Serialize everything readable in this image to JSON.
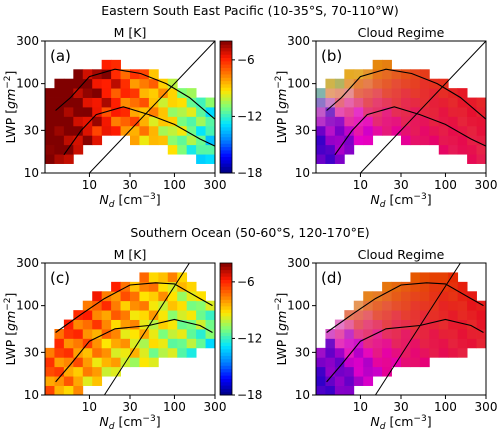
{
  "figure": {
    "section_titles": [
      "Eastern South East Pacific (10-35°S, 70-110°W)",
      "Southern Ocean (50-60°S, 120-170°E)"
    ]
  },
  "axes_text": {
    "ylabel_main": "LWP [",
    "ylabel_unit": "gm",
    "ylabel_exp": "−2",
    "ylabel_close": "]",
    "xlabel_main": "N",
    "xlabel_sub": "d",
    "xlabel_unit": " [cm",
    "xlabel_exp": "−3",
    "xlabel_close": "]"
  },
  "colors": {
    "colormap": [
      "#00007f",
      "#0000ff",
      "#0080ff",
      "#00e5ff",
      "#7dff7a",
      "#ffe600",
      "#ff7b00",
      "#ff1a00",
      "#800000"
    ],
    "cloud_regime_mix": [
      "#ff0000",
      "#00c000",
      "#3c3ccc"
    ],
    "contour": "#000000"
  },
  "chart_data": [
    {
      "type": "heatmap",
      "panel_label": "(a)",
      "title": "M [K]",
      "xscale": "log",
      "yscale": "log",
      "xlim": [
        3,
        300
      ],
      "ylim": [
        10,
        300
      ],
      "xticks": [
        10,
        30,
        100,
        300
      ],
      "yticks": [
        10,
        30,
        100,
        300
      ],
      "colorbar": {
        "min": -18,
        "max": -4,
        "ticks": [
          -6,
          -12,
          -18
        ]
      },
      "reference_line": {
        "points": [
          [
            10,
            10
          ],
          [
            300,
            300
          ]
        ]
      },
      "field": {
        "kind": "M",
        "base": -7,
        "nd_slope": -5,
        "lwp_slope": 1.5,
        "nd_center": 30,
        "lwp_center": 60
      },
      "mask": {
        "upper_lwp": [
          [
            3,
            80
          ],
          [
            5,
            110
          ],
          [
            10,
            160
          ],
          [
            20,
            170
          ],
          [
            40,
            150
          ],
          [
            70,
            120
          ],
          [
            150,
            90
          ],
          [
            300,
            60
          ]
        ],
        "lower_lwp": [
          [
            3,
            12
          ],
          [
            5,
            12
          ],
          [
            8,
            18
          ],
          [
            15,
            25
          ],
          [
            50,
            22
          ],
          [
            150,
            15
          ],
          [
            300,
            12
          ]
        ]
      },
      "contours": [
        [
          [
            4,
            50
          ],
          [
            6,
            70
          ],
          [
            10,
            120
          ],
          [
            20,
            145
          ],
          [
            40,
            130
          ],
          [
            80,
            100
          ],
          [
            150,
            70
          ],
          [
            300,
            40
          ]
        ],
        [
          [
            5,
            16
          ],
          [
            8,
            30
          ],
          [
            12,
            45
          ],
          [
            25,
            55
          ],
          [
            50,
            45
          ],
          [
            100,
            35
          ],
          [
            200,
            24
          ],
          [
            300,
            20
          ]
        ]
      ]
    },
    {
      "type": "heatmap",
      "panel_label": "(b)",
      "title": "Cloud Regime",
      "xscale": "log",
      "yscale": "log",
      "xlim": [
        3,
        300
      ],
      "ylim": [
        10,
        300
      ],
      "xticks": [
        10,
        30,
        100,
        300
      ],
      "yticks": [
        10,
        30,
        100,
        300
      ],
      "reference_line": {
        "points": [
          [
            10,
            10
          ],
          [
            300,
            300
          ]
        ]
      },
      "field": {
        "kind": "regime"
      },
      "mask": {
        "upper_lwp": [
          [
            3,
            80
          ],
          [
            5,
            110
          ],
          [
            10,
            160
          ],
          [
            20,
            170
          ],
          [
            40,
            150
          ],
          [
            70,
            120
          ],
          [
            150,
            90
          ],
          [
            300,
            60
          ]
        ],
        "lower_lwp": [
          [
            3,
            12
          ],
          [
            5,
            12
          ],
          [
            8,
            18
          ],
          [
            15,
            25
          ],
          [
            50,
            22
          ],
          [
            150,
            15
          ],
          [
            300,
            12
          ]
        ]
      },
      "contours": [
        [
          [
            4,
            50
          ],
          [
            6,
            70
          ],
          [
            10,
            120
          ],
          [
            20,
            145
          ],
          [
            40,
            130
          ],
          [
            80,
            100
          ],
          [
            150,
            70
          ],
          [
            300,
            40
          ]
        ],
        [
          [
            5,
            16
          ],
          [
            8,
            30
          ],
          [
            12,
            45
          ],
          [
            25,
            55
          ],
          [
            50,
            45
          ],
          [
            100,
            35
          ],
          [
            200,
            24
          ],
          [
            300,
            20
          ]
        ]
      ]
    },
    {
      "type": "heatmap",
      "panel_label": "(c)",
      "title": "M [K]",
      "xscale": "log",
      "yscale": "log",
      "xlim": [
        3,
        300
      ],
      "ylim": [
        10,
        300
      ],
      "xticks": [
        10,
        30,
        100,
        300
      ],
      "yticks": [
        10,
        30,
        100,
        300
      ],
      "colorbar": {
        "min": -18,
        "max": -4,
        "ticks": [
          -6,
          -12,
          -18
        ]
      },
      "reference_line": {
        "points": [
          [
            15,
            10
          ],
          [
            150,
            300
          ]
        ]
      },
      "field": {
        "kind": "M",
        "base": -8,
        "nd_slope": -3,
        "lwp_slope": 2.5,
        "nd_center": 20,
        "lwp_center": 60
      },
      "mask": {
        "upper_lwp": [
          [
            3,
            30
          ],
          [
            5,
            60
          ],
          [
            10,
            120
          ],
          [
            20,
            170
          ],
          [
            50,
            220
          ],
          [
            100,
            260
          ],
          [
            200,
            150
          ],
          [
            300,
            100
          ]
        ],
        "lower_lwp": [
          [
            3,
            10
          ],
          [
            5,
            10
          ],
          [
            10,
            12
          ],
          [
            20,
            18
          ],
          [
            50,
            22
          ],
          [
            100,
            25
          ],
          [
            200,
            30
          ],
          [
            300,
            30
          ]
        ]
      },
      "contours": [
        [
          [
            4,
            50
          ],
          [
            8,
            80
          ],
          [
            15,
            120
          ],
          [
            30,
            170
          ],
          [
            60,
            180
          ],
          [
            100,
            175
          ],
          [
            200,
            120
          ],
          [
            280,
            100
          ]
        ],
        [
          [
            4,
            14
          ],
          [
            6,
            22
          ],
          [
            10,
            40
          ],
          [
            20,
            55
          ],
          [
            50,
            60
          ],
          [
            100,
            70
          ],
          [
            200,
            60
          ],
          [
            280,
            50
          ]
        ]
      ]
    },
    {
      "type": "heatmap",
      "panel_label": "(d)",
      "title": "Cloud Regime",
      "xscale": "log",
      "yscale": "log",
      "xlim": [
        3,
        300
      ],
      "ylim": [
        10,
        300
      ],
      "xticks": [
        10,
        30,
        100,
        300
      ],
      "yticks": [
        10,
        30,
        100,
        300
      ],
      "reference_line": {
        "points": [
          [
            15,
            10
          ],
          [
            150,
            300
          ]
        ]
      },
      "field": {
        "kind": "regime"
      },
      "mask": {
        "upper_lwp": [
          [
            3,
            30
          ],
          [
            5,
            60
          ],
          [
            10,
            120
          ],
          [
            20,
            170
          ],
          [
            50,
            220
          ],
          [
            100,
            260
          ],
          [
            200,
            150
          ],
          [
            300,
            100
          ]
        ],
        "lower_lwp": [
          [
            3,
            10
          ],
          [
            5,
            10
          ],
          [
            10,
            12
          ],
          [
            20,
            18
          ],
          [
            50,
            22
          ],
          [
            100,
            25
          ],
          [
            200,
            30
          ],
          [
            300,
            30
          ]
        ]
      },
      "contours": [
        [
          [
            4,
            50
          ],
          [
            8,
            80
          ],
          [
            15,
            120
          ],
          [
            30,
            170
          ],
          [
            60,
            180
          ],
          [
            100,
            175
          ],
          [
            200,
            120
          ],
          [
            280,
            100
          ]
        ],
        [
          [
            4,
            14
          ],
          [
            6,
            22
          ],
          [
            10,
            40
          ],
          [
            20,
            55
          ],
          [
            50,
            60
          ],
          [
            100,
            70
          ],
          [
            200,
            60
          ],
          [
            280,
            50
          ]
        ]
      ]
    }
  ]
}
